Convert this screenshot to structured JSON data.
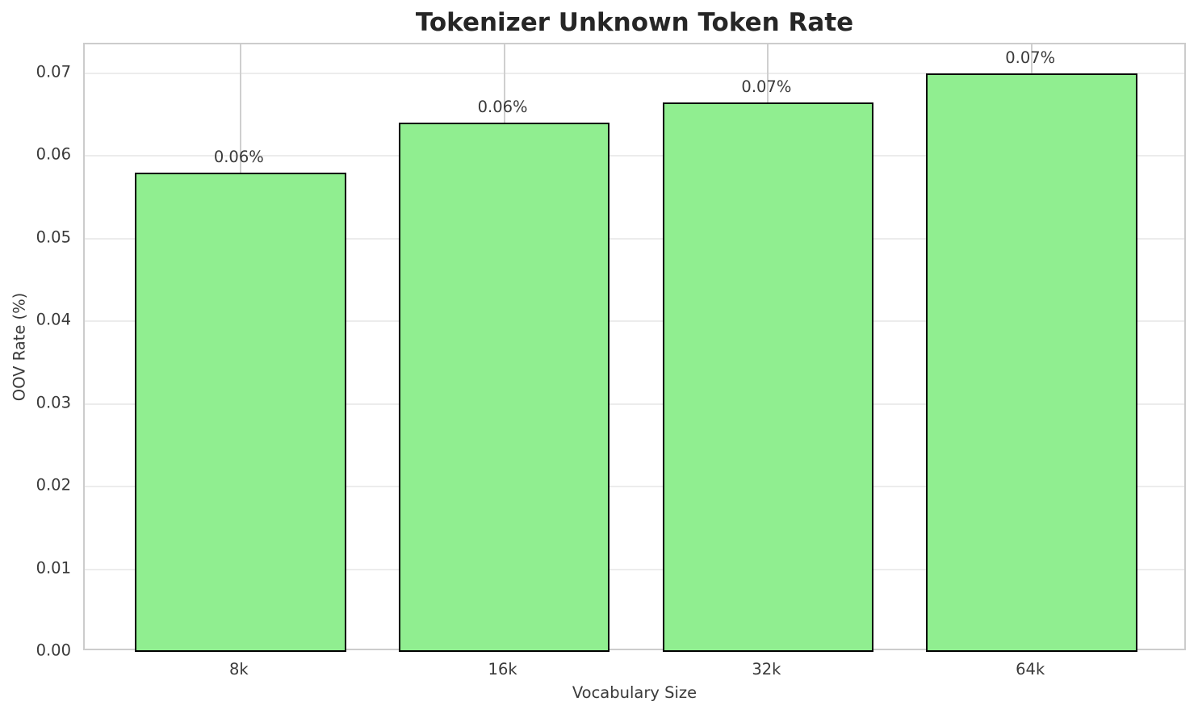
{
  "chart_data": {
    "type": "bar",
    "title": "Tokenizer Unknown Token Rate",
    "xlabel": "Vocabulary Size",
    "ylabel": "OOV Rate (%)",
    "categories": [
      "8k",
      "16k",
      "32k",
      "64k"
    ],
    "values": [
      0.058,
      0.064,
      0.0665,
      0.07
    ],
    "bar_labels": [
      "0.06%",
      "0.06%",
      "0.07%",
      "0.07%"
    ],
    "yticks": [
      0.0,
      0.01,
      0.02,
      0.03,
      0.04,
      0.05,
      0.06,
      0.07
    ],
    "ytick_labels": [
      "0.00",
      "0.01",
      "0.02",
      "0.03",
      "0.04",
      "0.05",
      "0.06",
      "0.07"
    ],
    "ylim": [
      0,
      0.0735
    ],
    "grid": true,
    "legend": null,
    "bar_color": "#90EE90",
    "bar_edge_color": "#000000",
    "grid_color_horizontal": "#ececec",
    "grid_color_vertical": "#cfcfcf",
    "spine_color": "#cccccc",
    "text_color": "#3a3a3a",
    "title_color": "#262626"
  }
}
